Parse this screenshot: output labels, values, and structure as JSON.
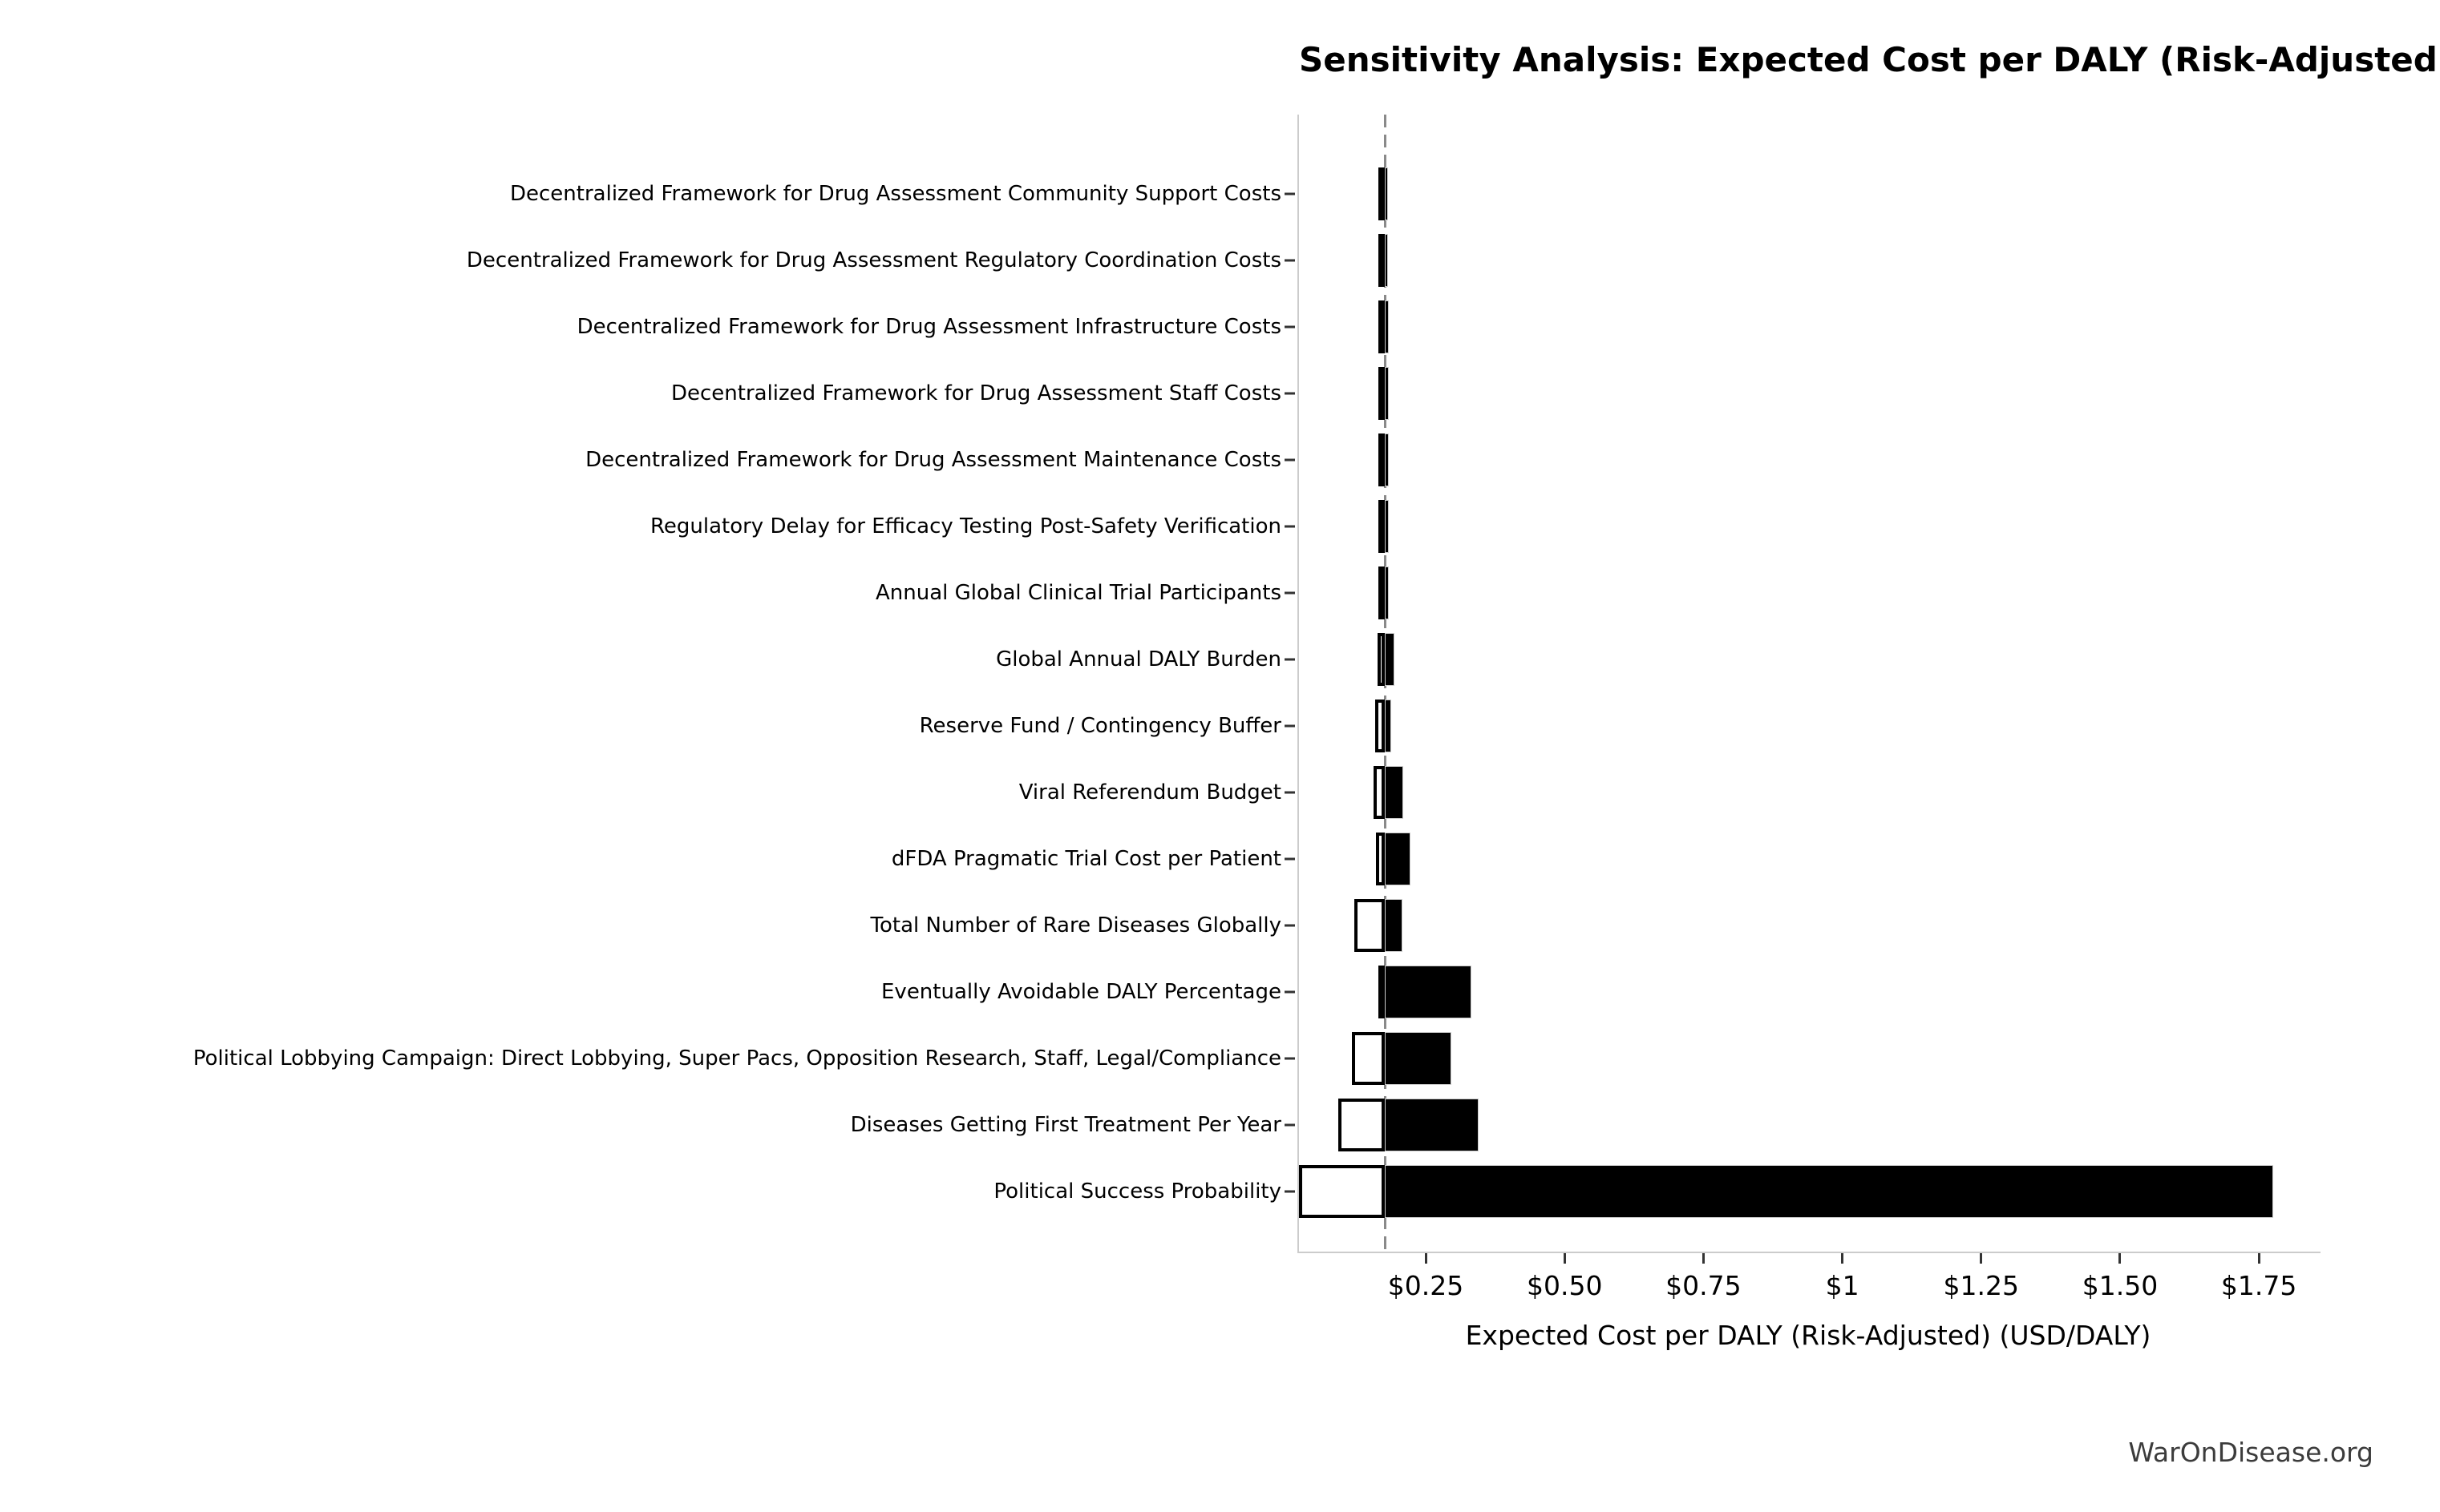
{
  "title": "Sensitivity Analysis: Expected Cost per DALY (Risk-Adjusted)",
  "watermark": "WarOnDisease.org",
  "chart_data": {
    "type": "bar",
    "subtype": "tornado-sensitivity",
    "orientation": "horizontal",
    "title": "Sensitivity Analysis: Expected Cost per DALY (Risk-Adjusted)",
    "xlabel": "Expected Cost per DALY (Risk-Adjusted) (USD/DALY)",
    "ylabel": "",
    "grid": false,
    "legend": false,
    "baseline_value": 0.177,
    "xlim": [
      0.019,
      1.858
    ],
    "x_ticks": [
      {
        "value": 0.25,
        "label": "$0.25"
      },
      {
        "value": 0.5,
        "label": "$0.50"
      },
      {
        "value": 0.75,
        "label": "$0.75"
      },
      {
        "value": 1.0,
        "label": "$1"
      },
      {
        "value": 1.25,
        "label": "$1.25"
      },
      {
        "value": 1.5,
        "label": "$1.50"
      },
      {
        "value": 1.75,
        "label": "$1.75"
      }
    ],
    "categories": [
      "Decentralized Framework for Drug Assessment Community Support Costs",
      "Decentralized Framework for Drug Assessment Regulatory Coordination Costs",
      "Decentralized Framework for Drug Assessment Infrastructure Costs",
      "Decentralized Framework for Drug Assessment Staff Costs",
      "Decentralized Framework for Drug Assessment Maintenance Costs",
      "Regulatory Delay for Efficacy Testing Post-Safety Verification",
      "Annual Global Clinical Trial Participants",
      "Global Annual DALY Burden",
      "Reserve Fund / Contingency Buffer",
      "Viral Referendum Budget",
      "dFDA Pragmatic Trial Cost per Patient",
      "Total Number of Rare Diseases Globally",
      "Eventually Avoidable DALY Percentage",
      "Political Lobbying Campaign: Direct Lobbying, Super Pacs, Opposition Research, Staff, Legal/Compliance",
      "Diseases Getting First Treatment Per Year",
      "Political Success Probability"
    ],
    "series": [
      {
        "name": "low_value_usd_per_daly",
        "values": [
          0.172,
          0.172,
          0.171,
          0.171,
          0.171,
          0.17,
          0.169,
          0.164,
          0.159,
          0.156,
          0.16,
          0.121,
          0.165,
          0.117,
          0.092,
          0.022
        ]
      },
      {
        "name": "high_value_usd_per_daly",
        "values": [
          0.182,
          0.182,
          0.183,
          0.183,
          0.183,
          0.184,
          0.184,
          0.194,
          0.188,
          0.209,
          0.223,
          0.208,
          0.332,
          0.296,
          0.345,
          1.776
        ]
      }
    ],
    "colors": {
      "bar_high_fill": "#000000",
      "bar_high_edge": "#cccccc",
      "bar_low_fill": "#ffffff",
      "bar_low_edge": "#000000",
      "baseline_line": "#8a8a8a",
      "spine": "#cccccc",
      "tick": "#333333",
      "background": "#ffffff",
      "watermark_text": "#3c3c3c"
    }
  }
}
